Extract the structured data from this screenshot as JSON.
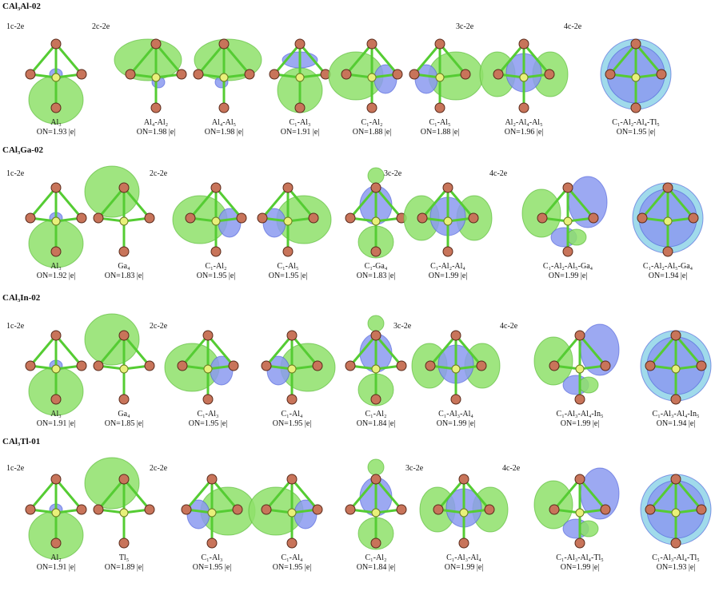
{
  "colors": {
    "green": "#8ee06a",
    "green_stroke": "#4fb52a",
    "blue": "#8b9af0",
    "blue_stroke": "#4a5bd8",
    "cyan": "#8fd4e8",
    "bond": "#55cc33",
    "atom": "#c8745a",
    "atom_center": "#e8f07a"
  },
  "rows": [
    {
      "title": "CAl₃Al-02",
      "labels": [
        "1c-2e",
        "2c-2e",
        "3c-2e",
        "4c-2e"
      ],
      "panels": [
        {
          "name": "Al₃",
          "on": "ON=1.93 |e|",
          "kind": "lp"
        },
        {
          "name": "Al₄-Al₂",
          "on": "ON=1.98 |e|",
          "kind": "pairL"
        },
        {
          "name": "Al₄-Al₅",
          "on": "ON=1.98 |e|",
          "kind": "pairR"
        },
        {
          "name": "C₁-Al₃",
          "on": "ON=1.91 |e|",
          "kind": "down"
        },
        {
          "name": "C₁-Al₂",
          "on": "ON=1.88 |e|",
          "kind": "left"
        },
        {
          "name": "C₁-Al₅",
          "on": "ON=1.88 |e|",
          "kind": "right"
        },
        {
          "name": "Al₂-Al₄-Al₅",
          "on": "ON=1.96 |e|",
          "kind": "three"
        },
        {
          "name": "C₁-Al₂-Al₄-Tl₅",
          "on": "ON=1.95 |e|",
          "kind": "four"
        }
      ]
    },
    {
      "title": "CAl₃Ga-02",
      "labels": [
        "1c-2e",
        "2c-2e",
        "3c-2e",
        "4c-2e"
      ],
      "panels": [
        {
          "name": "Al₃",
          "on": "ON=1.92 |e|",
          "kind": "lp"
        },
        {
          "name": "Ga₄",
          "on": "ON=1.83 |e|",
          "kind": "top"
        },
        {
          "name": "C₁-Al₂",
          "on": "ON=1.95 |e|",
          "kind": "left"
        },
        {
          "name": "C₁-Al₅",
          "on": "ON=1.95 |e|",
          "kind": "right"
        },
        {
          "name": "C₁-Ga₄",
          "on": "ON=1.83 |e|",
          "kind": "vert"
        },
        {
          "name": "C₁-Al₂-Al₄",
          "on": "ON=1.99 |e|",
          "kind": "three"
        },
        {
          "name": "C₁-Al₂-Al₅-Ga₄",
          "on": "ON=1.99 |e|",
          "kind": "mixed"
        },
        {
          "name": "C₁-Al₂-Al₅-Ga₄",
          "on": "ON=1.94 |e|",
          "kind": "four"
        }
      ]
    },
    {
      "title": "CAl₃In-02",
      "labels": [
        "1c-2e",
        "2c-2e",
        "3c-2e",
        "4c-2e"
      ],
      "panels": [
        {
          "name": "Al₃",
          "on": "ON=1.91 |e|",
          "kind": "lp"
        },
        {
          "name": "Ga₄",
          "on": "ON=1.85 |e|",
          "kind": "top"
        },
        {
          "name": "C₁-Al₃",
          "on": "ON=1.95 |e|",
          "kind": "left"
        },
        {
          "name": "C₁-Al₄",
          "on": "ON=1.95 |e|",
          "kind": "right"
        },
        {
          "name": "C₁-Al₂",
          "on": "ON=1.84 |e|",
          "kind": "vert"
        },
        {
          "name": "C₁-Al₃-Al₄",
          "on": "ON=1.99 |e|",
          "kind": "three"
        },
        {
          "name": "C₁-Al₃-Al₄-In₅",
          "on": "ON=1.99 |e|",
          "kind": "mixed"
        },
        {
          "name": "C₁-Al₃-Al₄-In₅",
          "on": "ON=1.94 |e|",
          "kind": "four"
        }
      ]
    },
    {
      "title": "CAl₃Tl-01",
      "labels": [
        "1c-2e",
        "2c-2e",
        "3c-2e",
        "4c-2e"
      ],
      "panels": [
        {
          "name": "Al₂",
          "on": "ON=1.91 |e|",
          "kind": "lp"
        },
        {
          "name": "Tl₅",
          "on": "ON=1.89 |e|",
          "kind": "top"
        },
        {
          "name": "C₁-Al₃",
          "on": "ON=1.95 |e|",
          "kind": "right"
        },
        {
          "name": "C₁-Al₄",
          "on": "ON=1.95 |e|",
          "kind": "left"
        },
        {
          "name": "C₁-Al₂",
          "on": "ON=1.84 |e|",
          "kind": "vert"
        },
        {
          "name": "C₁-Al₃-Al₄",
          "on": "ON=1.99 |e|",
          "kind": "three"
        },
        {
          "name": "C₁-Al₃-Al₄-Tl₅",
          "on": "ON=1.99 |e|",
          "kind": "mixed"
        },
        {
          "name": "C₁-Al₃-Al₄-Tl₅",
          "on": "ON=1.93 |e|",
          "kind": "four"
        }
      ]
    }
  ]
}
